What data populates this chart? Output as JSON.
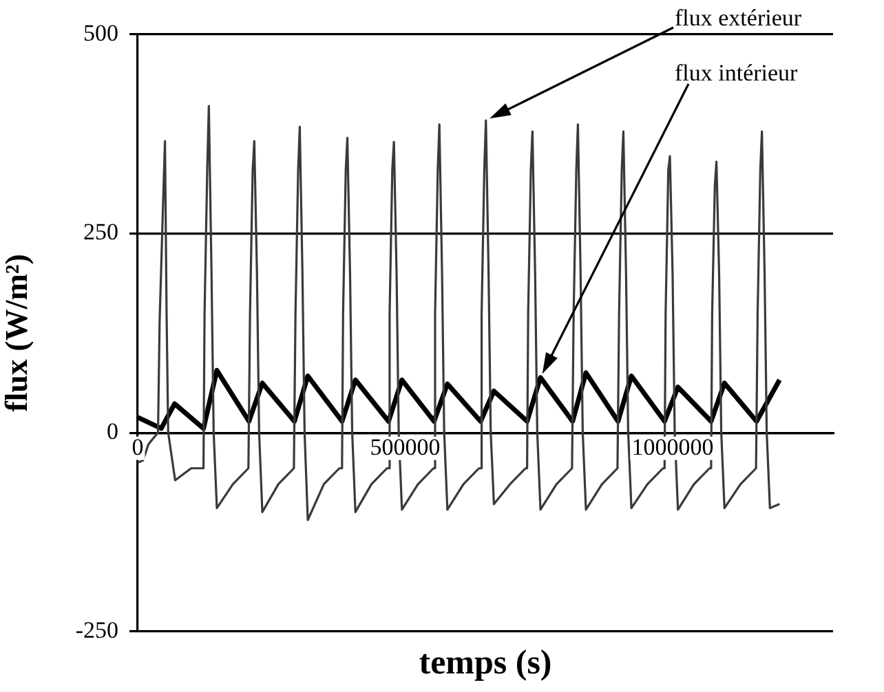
{
  "chart_data": {
    "type": "line",
    "xlabel": "temps (s)",
    "ylabel": "flux (W/m²)",
    "xlim": [
      0,
      1300000
    ],
    "xticks": [
      0,
      500000,
      1000000
    ],
    "ylim": [
      -250,
      500
    ],
    "yticks": [
      -250,
      0,
      250,
      500
    ],
    "grid": "y",
    "marker": "none",
    "line_style": "solid",
    "series": [
      {
        "color": "#3a3a3a",
        "x": [
          0,
          10000,
          20000,
          38000,
          41000,
          48000,
          51000,
          54000,
          57000,
          70000,
          100000,
          123000,
          125000,
          130000,
          133000,
          138000,
          142000,
          148000,
          178000,
          207000,
          208000,
          210000,
          215000,
          218000,
          223000,
          227000,
          233000,
          263000,
          292000,
          293000,
          295000,
          300000,
          303000,
          308000,
          312000,
          318000,
          348000,
          377000,
          382000,
          384000,
          389000,
          392000,
          397000,
          401000,
          407000,
          437000,
          466000,
          469000,
          471000,
          476000,
          479000,
          484000,
          488000,
          494000,
          524000,
          553000,
          554000,
          556000,
          561000,
          564000,
          569000,
          573000,
          579000,
          609000,
          638000,
          641000,
          643000,
          648000,
          651000,
          656000,
          660000,
          666000,
          696000,
          725000,
          728000,
          730000,
          735000,
          738000,
          743000,
          747000,
          753000,
          783000,
          812000,
          813000,
          815000,
          820000,
          823000,
          828000,
          832000,
          838000,
          868000,
          897000,
          898000,
          900000,
          905000,
          908000,
          913000,
          917000,
          923000,
          953000,
          982000,
          985000,
          987000,
          992000,
          995000,
          1000000,
          1004000,
          1010000,
          1040000,
          1069000,
          1072000,
          1074000,
          1079000,
          1082000,
          1087000,
          1091000,
          1097000,
          1127000,
          1156000,
          1157000,
          1159000,
          1164000,
          1167000,
          1172000,
          1176000,
          1182000,
          1200000
        ],
        "values": [
          -38,
          -35,
          -15,
          0,
          140,
          300,
          366,
          150,
          0,
          -60,
          -45,
          -45,
          150,
          330,
          410,
          200,
          0,
          -95,
          -65,
          -45,
          -45,
          150,
          330,
          366,
          200,
          0,
          -100,
          -65,
          -45,
          -45,
          150,
          330,
          384,
          200,
          0,
          -110,
          -65,
          -45,
          -45,
          150,
          330,
          370,
          200,
          0,
          -100,
          -65,
          -45,
          -45,
          150,
          330,
          365,
          200,
          0,
          -97,
          -65,
          -45,
          -45,
          150,
          330,
          387,
          200,
          0,
          -97,
          -65,
          -45,
          -45,
          150,
          330,
          392,
          200,
          0,
          -90,
          -65,
          -45,
          -45,
          150,
          330,
          378,
          200,
          0,
          -97,
          -65,
          -45,
          -45,
          150,
          330,
          387,
          200,
          0,
          -97,
          -65,
          -45,
          -45,
          150,
          330,
          378,
          200,
          0,
          -95,
          -65,
          -45,
          -45,
          150,
          330,
          347,
          200,
          0,
          -97,
          -65,
          -45,
          -45,
          150,
          310,
          340,
          200,
          0,
          -95,
          -65,
          -45,
          -45,
          150,
          330,
          378,
          200,
          0,
          -95,
          -90
        ]
      },
      {
        "color": "#000000",
        "x": [
          0,
          44000,
          69000,
          123000,
          148000,
          208000,
          233000,
          293000,
          318000,
          382000,
          407000,
          469000,
          494000,
          554000,
          579000,
          641000,
          666000,
          728000,
          753000,
          813000,
          838000,
          898000,
          923000,
          985000,
          1010000,
          1072000,
          1097000,
          1157000,
          1200000
        ],
        "values": [
          19,
          5,
          36,
          5,
          78,
          14,
          62,
          14,
          71,
          14,
          66,
          14,
          66,
          14,
          61,
          14,
          52,
          14,
          69,
          14,
          75,
          14,
          71,
          14,
          57,
          14,
          62,
          14,
          66
        ]
      }
    ],
    "annotations": [
      "flux extérieur",
      "flux intérieur"
    ]
  }
}
